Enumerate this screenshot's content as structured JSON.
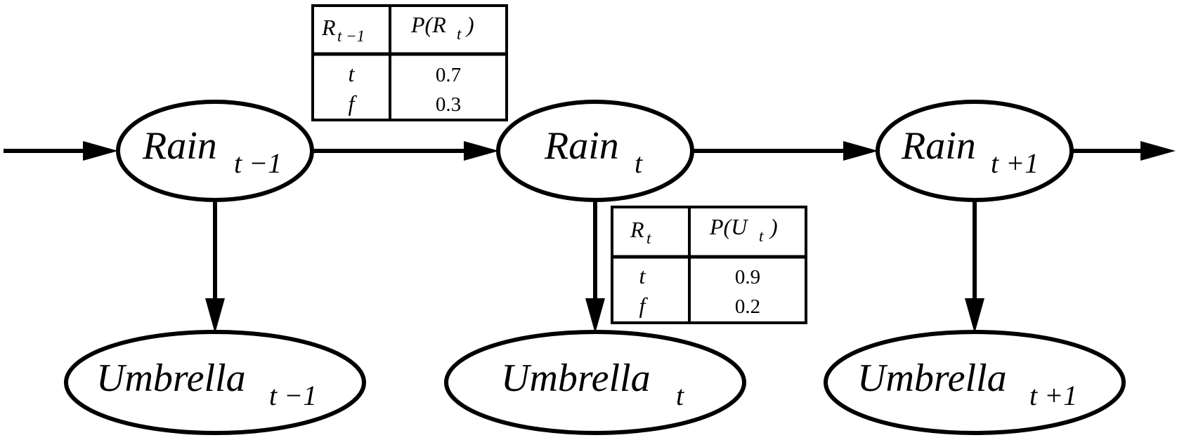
{
  "nodes": {
    "rain_prev": {
      "name": "Rain",
      "sub": "t −1"
    },
    "rain_t": {
      "name": "Rain",
      "sub": "t"
    },
    "rain_next": {
      "name": "Rain",
      "sub": "t +1"
    },
    "umb_prev": {
      "name": "Umbrella",
      "sub": "t −1"
    },
    "umb_t": {
      "name": "Umbrella",
      "sub": "t"
    },
    "umb_next": {
      "name": "Umbrella",
      "sub": "t +1"
    }
  },
  "transition_table": {
    "col1": {
      "base": "R",
      "sub": "t −1"
    },
    "col2": {
      "pre": "P(R",
      "sub": "t",
      "post": ")"
    },
    "rows": [
      {
        "key": "t",
        "value": "0.7"
      },
      {
        "key": "f",
        "value": "0.3"
      }
    ]
  },
  "sensor_table": {
    "col1": {
      "base": "R",
      "sub": "t"
    },
    "col2": {
      "pre": "P(U",
      "sub": "t",
      "post": ")"
    },
    "rows": [
      {
        "key": "t",
        "value": "0.9"
      },
      {
        "key": "f",
        "value": "0.2"
      }
    ]
  }
}
